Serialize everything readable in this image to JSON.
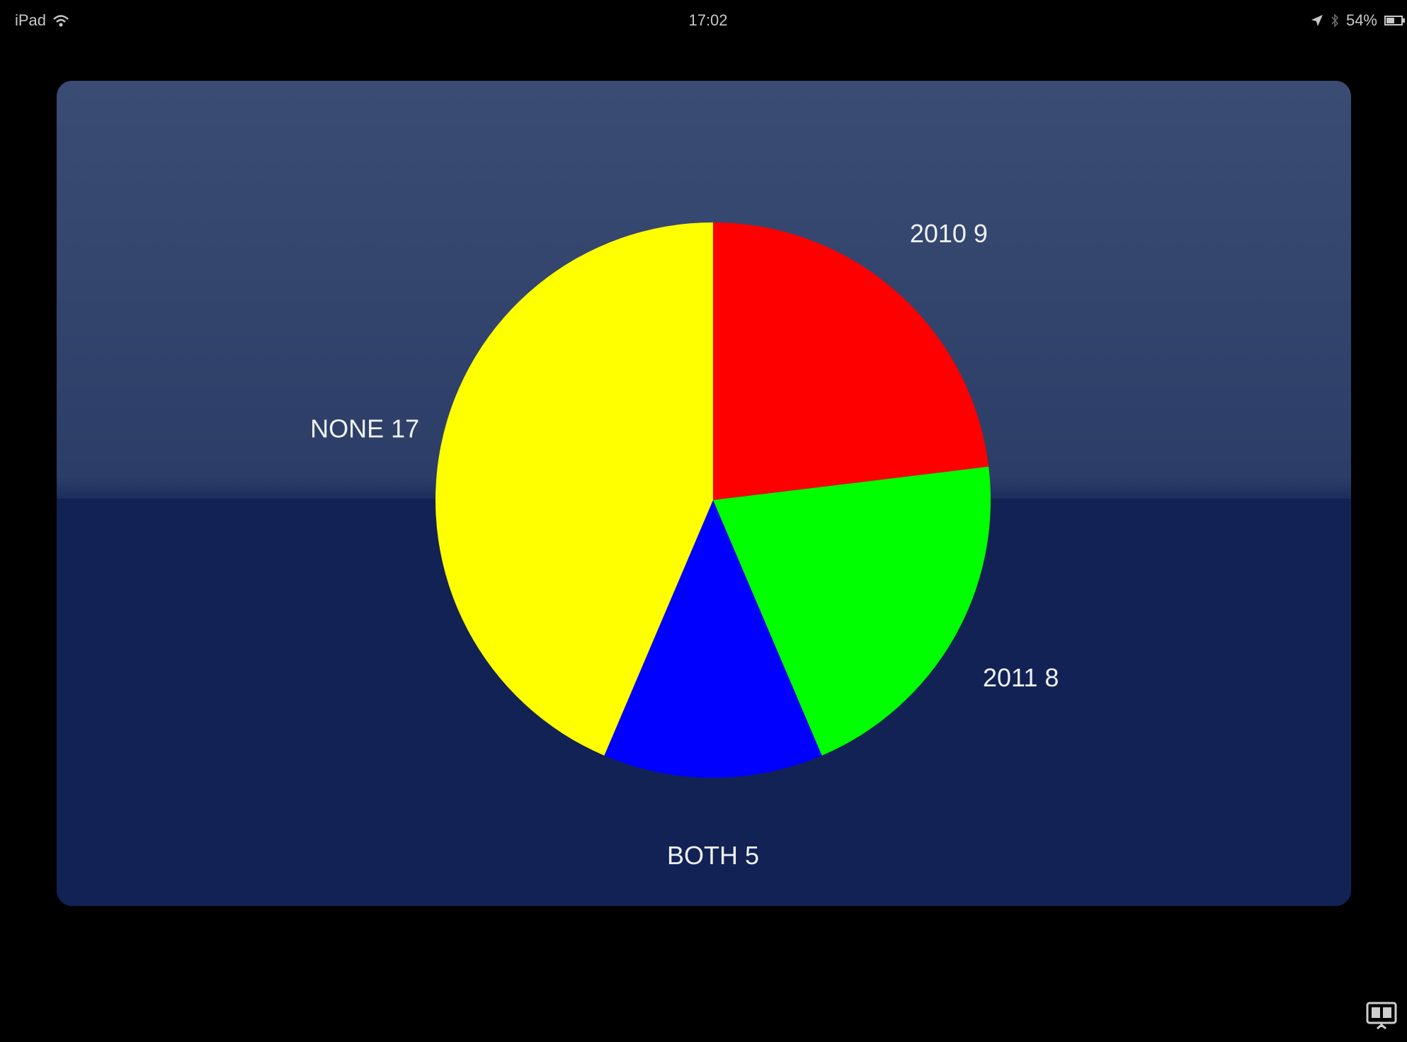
{
  "status_bar": {
    "device": "iPad",
    "time": "17:02",
    "battery": "54%"
  },
  "chart_data": {
    "type": "pie",
    "slices": [
      {
        "label": "2010",
        "value": 9,
        "color": "#ff0000"
      },
      {
        "label": "2011",
        "value": 8,
        "color": "#00ff00"
      },
      {
        "label": "BOTH",
        "value": 5,
        "color": "#0000ff"
      },
      {
        "label": "NONE",
        "value": 17,
        "color": "#ffff00"
      }
    ],
    "slice_labels": [
      "2010 9",
      "2011 8",
      "BOTH 5",
      "NONE 17"
    ],
    "start": "top",
    "direction": "clockwise",
    "legend": "none"
  },
  "icons": {
    "wifi": "wifi-icon",
    "location": "location-arrow-icon",
    "bluetooth": "bluetooth-icon",
    "battery": "battery-icon",
    "presentation": "presentation-screen-icon"
  }
}
